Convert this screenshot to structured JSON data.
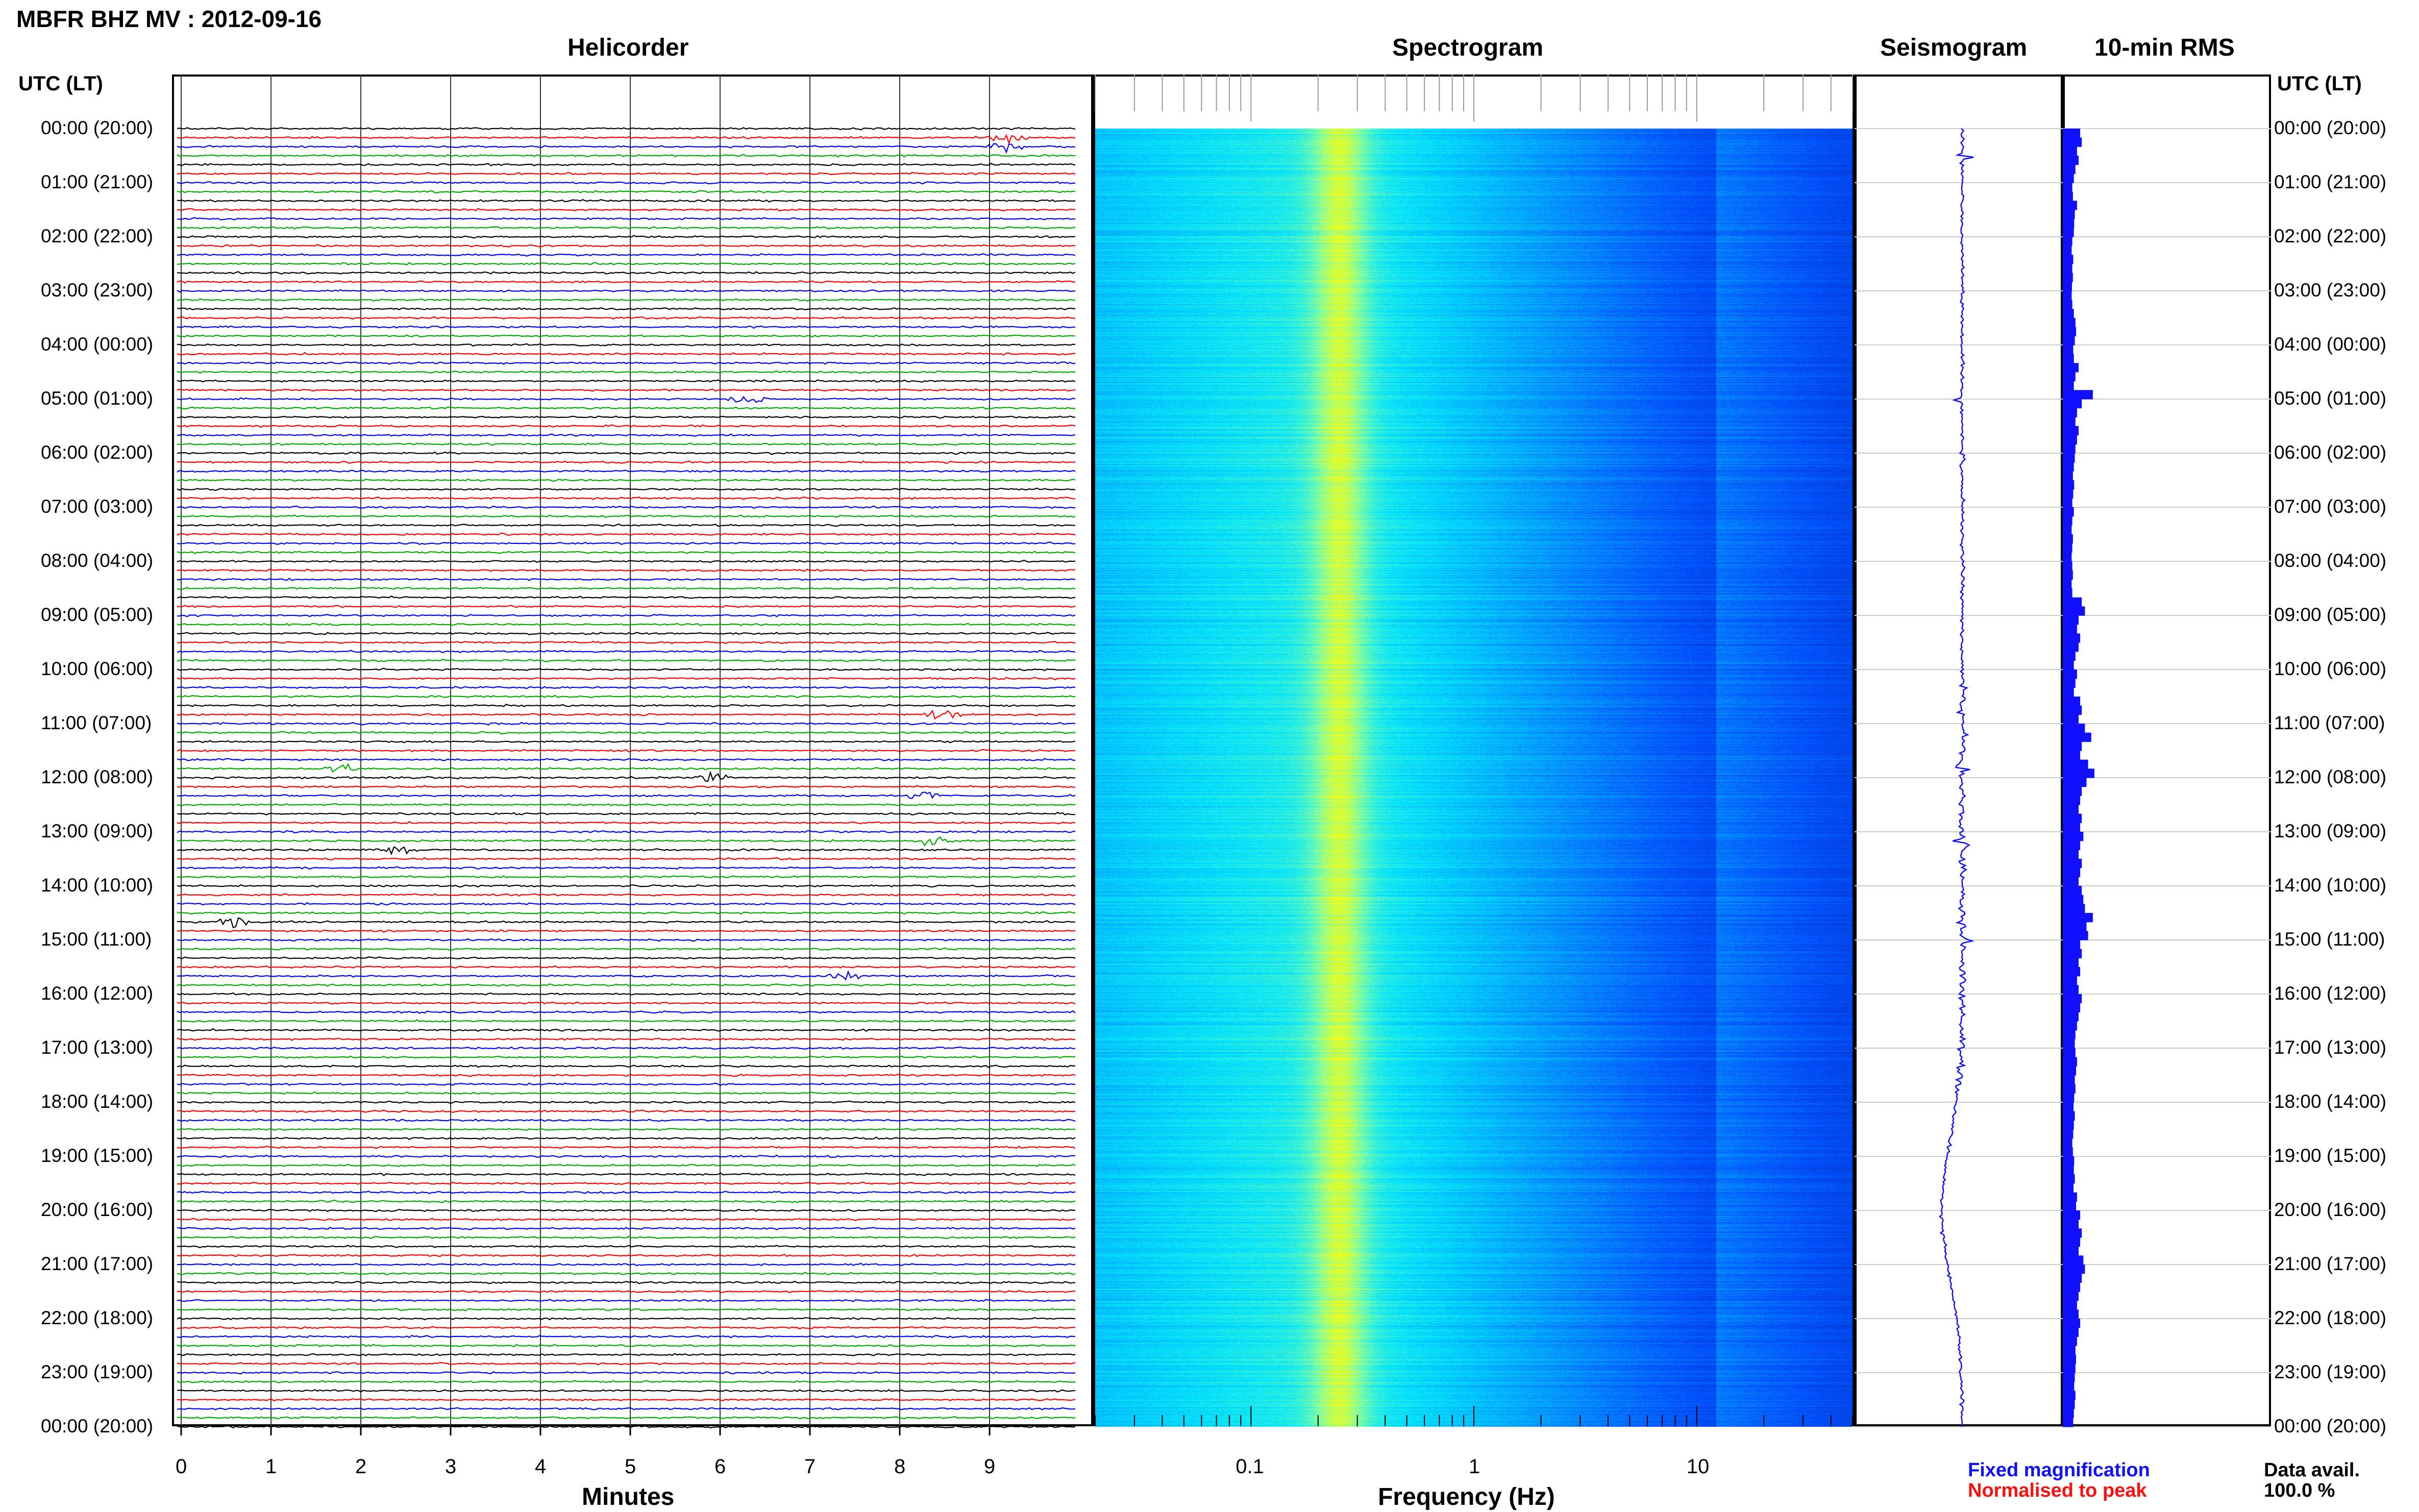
{
  "header": {
    "title": "MBFR BHZ MV : 2012-09-16",
    "left_axis_heading": "UTC (LT)",
    "right_axis_heading": "UTC (LT)"
  },
  "panels": {
    "helicorder": "Helicorder",
    "spectrogram": "Spectrogram",
    "seismogram": "Seismogram",
    "rms": "10-min RMS"
  },
  "time_labels": [
    "00:00 (20:00)",
    "01:00 (21:00)",
    "02:00 (22:00)",
    "03:00 (23:00)",
    "04:00 (00:00)",
    "05:00 (01:00)",
    "06:00 (02:00)",
    "07:00 (03:00)",
    "08:00 (04:00)",
    "09:00 (05:00)",
    "10:00 (06:00)",
    "11:00 (07:00)",
    "12:00 (08:00)",
    "13:00 (09:00)",
    "14:00 (10:00)",
    "15:00 (11:00)",
    "16:00 (12:00)",
    "17:00 (13:00)",
    "18:00 (14:00)",
    "19:00 (15:00)",
    "20:00 (16:00)",
    "21:00 (17:00)",
    "22:00 (18:00)",
    "23:00 (19:00)",
    "00:00 (20:00)"
  ],
  "legend": {
    "fixed": "Fixed magnification",
    "normalised": "Normalised to peak",
    "fixed_color": "#1010ff",
    "normalised_color": "#ff1010"
  },
  "data_availability": {
    "label": "Data avail.",
    "value": "100.0 %"
  },
  "chart_data": [
    {
      "type": "line",
      "name": "helicorder",
      "title": "Helicorder",
      "xlabel": "Minutes",
      "x_ticks": [
        0,
        1,
        2,
        3,
        4,
        5,
        6,
        7,
        8,
        9
      ],
      "xlim": [
        0,
        10
      ],
      "rows_per_hour": 6,
      "trace_colors": [
        "#000000",
        "#ff0000",
        "#0000ff",
        "#00aa00"
      ],
      "events": [
        {
          "hour": 0.25,
          "minute": 9.2
        },
        {
          "hour": 4.97,
          "minute": 6.3
        },
        {
          "hour": 11.9,
          "minute": 1.8
        },
        {
          "hour": 11.95,
          "minute": 5.9
        },
        {
          "hour": 12.4,
          "minute": 8.3
        },
        {
          "hour": 13.1,
          "minute": 8.4
        },
        {
          "hour": 13.4,
          "minute": 2.4
        },
        {
          "hour": 14.6,
          "minute": 0.6
        },
        {
          "hour": 15.6,
          "minute": 7.4
        },
        {
          "hour": 10.9,
          "minute": 8.5
        }
      ]
    },
    {
      "type": "heatmap",
      "name": "spectrogram",
      "title": "Spectrogram",
      "xlabel": "Frequency (Hz)",
      "x_scale": "log",
      "xlim": [
        0.02,
        50
      ],
      "x_tick_labels": [
        "0.1",
        "1",
        "10"
      ],
      "x_tick_values": [
        0.1,
        1,
        10
      ],
      "peak_frequency_hz": 0.25
    },
    {
      "type": "line",
      "name": "seismogram",
      "title": "Seismogram",
      "spike_hours": [
        0.5,
        5.0,
        11.8,
        13.2,
        15.0
      ]
    },
    {
      "type": "bar",
      "name": "rms",
      "title": "10-min RMS",
      "values": [
        0.55,
        0.6,
        0.45,
        0.5,
        0.4,
        0.35,
        0.3,
        0.32,
        0.45,
        0.38,
        0.36,
        0.35,
        0.3,
        0.28,
        0.33,
        0.3,
        0.32,
        0.29,
        0.28,
        0.3,
        0.35,
        0.4,
        0.42,
        0.38,
        0.33,
        0.35,
        0.5,
        0.4,
        0.35,
        0.95,
        0.6,
        0.45,
        0.4,
        0.5,
        0.45,
        0.4,
        0.38,
        0.35,
        0.32,
        0.36,
        0.33,
        0.3,
        0.35,
        0.3,
        0.28,
        0.32,
        0.3,
        0.28,
        0.3,
        0.32,
        0.28,
        0.3,
        0.6,
        0.7,
        0.5,
        0.45,
        0.55,
        0.5,
        0.4,
        0.35,
        0.45,
        0.4,
        0.35,
        0.55,
        0.6,
        0.5,
        0.7,
        0.9,
        0.6,
        0.55,
        0.8,
        1.0,
        0.75,
        0.6,
        0.55,
        0.5,
        0.6,
        0.55,
        0.65,
        0.55,
        0.5,
        0.6,
        0.55,
        0.5,
        0.6,
        0.65,
        0.7,
        0.95,
        0.75,
        0.8,
        0.55,
        0.6,
        0.5,
        0.55,
        0.45,
        0.5,
        0.6,
        0.55,
        0.5,
        0.45,
        0.4,
        0.38,
        0.4,
        0.45,
        0.42,
        0.38,
        0.4,
        0.36,
        0.34,
        0.38,
        0.35,
        0.33,
        0.3,
        0.32,
        0.36,
        0.35,
        0.38,
        0.34,
        0.45,
        0.42,
        0.55,
        0.5,
        0.6,
        0.55,
        0.5,
        0.65,
        0.7,
        0.6,
        0.55,
        0.5,
        0.45,
        0.5,
        0.55,
        0.5,
        0.45,
        0.4,
        0.42,
        0.4,
        0.38,
        0.36,
        0.4,
        0.38,
        0.35,
        0.33
      ]
    }
  ]
}
